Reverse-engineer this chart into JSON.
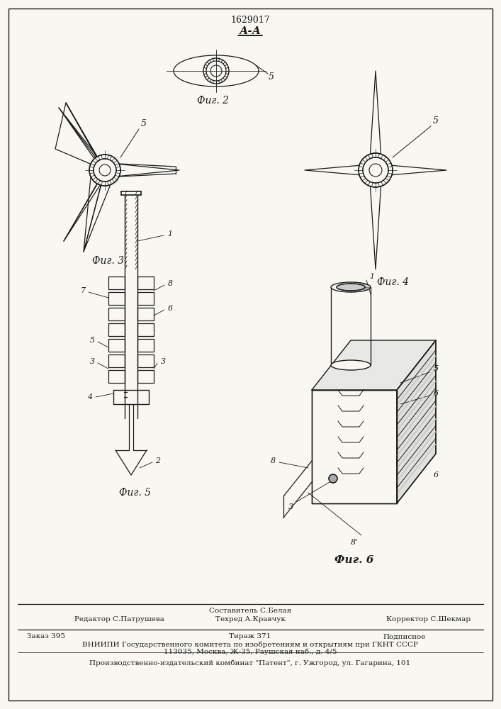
{
  "patent_number": "1629017",
  "section_label": "А-А",
  "fig2_label": "Фиг. 2",
  "fig3_label": "Фиг. 3",
  "fig4_label": "Фиг. 4",
  "fig5_label": "Фиг. 5",
  "fig6_label": "Фиг. 6",
  "footer_sestavitel": "Составитель С.Белая",
  "footer_editor": "Редактор С.Патрушева",
  "footer_tehred": "Техред А.Кравчук",
  "footer_korrektor": "Корректор С.Шекмар",
  "footer_zakaz": "Заказ 395",
  "footer_tirazh": "Тираж 371",
  "footer_podpisnoe": "Подписное",
  "footer_vniiipi": "ВНИИПИ Государственного комитета по изобретениям и открытиям при ГКНТ СССР",
  "footer_address": "113035, Москва, Ж-35, Раушская наб., д. 4/5",
  "footer_patent": "Производственно-издательский комбинат \"Патент\", г. Ужгород, ул. Гагарина, 101",
  "bg_color": "#f8f7f2",
  "line_color": "#1a1a1a"
}
